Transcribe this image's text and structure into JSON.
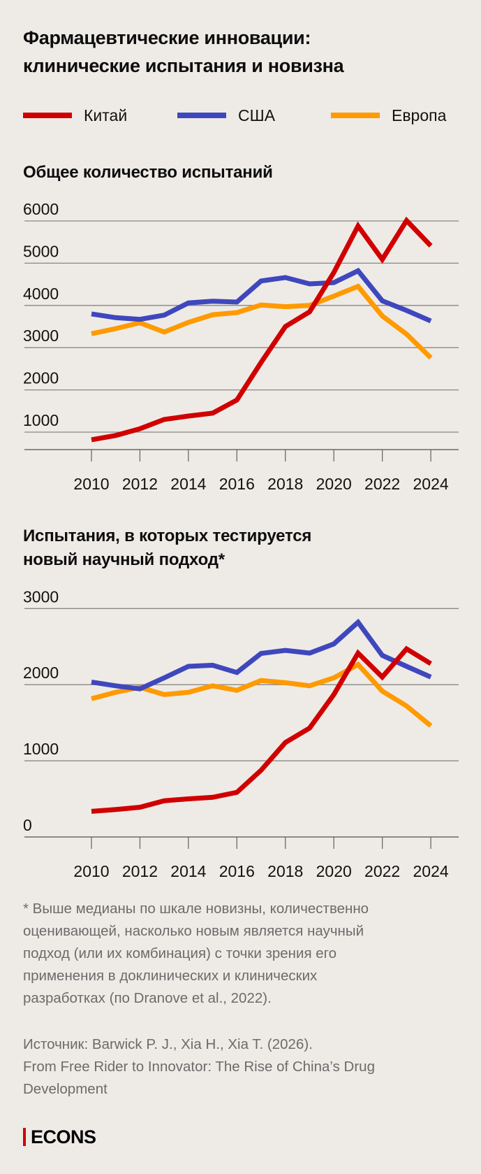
{
  "title": "Фармацевтические инновации: клинические испытания и новизна",
  "title_lines": [
    "Фармацевтические инновации:",
    "клинические испытания и новизна"
  ],
  "legend": [
    {
      "label": "Китай",
      "color": "#d10000"
    },
    {
      "label": "США",
      "color": "#3f47be"
    },
    {
      "label": "Европа",
      "color": "#ff9a00"
    }
  ],
  "footnote_lines": [
    "* Выше медианы по шкале новизны, количественно",
    "оценивающей, насколько новым является научный",
    "подход (или их комбинация) с точки зрения его",
    "применения в доклинических и клинических",
    "разработках (по Dranove et al., 2022)."
  ],
  "source_lines": [
    "Источник: Barwick P. J., Xia H., Xia T. (2026).",
    "From Free Rider to Innovator: The Rise of China’s Drug",
    "Development"
  ],
  "logo": "ECONS",
  "chart_data": [
    {
      "type": "line",
      "title": "Общее количество испытаний",
      "title_lines": [
        "Общее количество испытаний"
      ],
      "xlabel": "",
      "ylabel": "",
      "x": [
        2010,
        2011,
        2012,
        2013,
        2014,
        2015,
        2016,
        2017,
        2018,
        2019,
        2020,
        2021,
        2022,
        2023,
        2024
      ],
      "x_ticks": [
        "2010",
        "2012",
        "2014",
        "2016",
        "2018",
        "2020",
        "2022",
        "2024"
      ],
      "y_ticks": [
        "1000",
        "2000",
        "3000",
        "4000",
        "5000",
        "6000"
      ],
      "ylim": [
        580,
        6000
      ],
      "grid": true,
      "series": [
        {
          "name": "Китай",
          "color": "#d10000",
          "values": [
            820,
            920,
            1080,
            1300,
            1380,
            1450,
            1760,
            2650,
            3500,
            3850,
            4780,
            5880,
            5090,
            6010,
            5410
          ]
        },
        {
          "name": "США",
          "color": "#3f47be",
          "values": [
            3800,
            3710,
            3670,
            3770,
            4060,
            4100,
            4080,
            4580,
            4660,
            4510,
            4540,
            4820,
            4110,
            3880,
            3630
          ]
        },
        {
          "name": "Европа",
          "color": "#ff9a00",
          "values": [
            3330,
            3450,
            3590,
            3370,
            3600,
            3780,
            3830,
            4010,
            3970,
            4000,
            4220,
            4450,
            3750,
            3320,
            2760
          ]
        }
      ]
    },
    {
      "type": "line",
      "title": "Испытания, в которых тестируется новый научный подход*",
      "title_lines": [
        "Испытания, в которых тестируется",
        "новый научный подход*"
      ],
      "xlabel": "",
      "ylabel": "",
      "x": [
        2010,
        2011,
        2012,
        2013,
        2014,
        2015,
        2016,
        2017,
        2018,
        2019,
        2020,
        2021,
        2022,
        2023,
        2024
      ],
      "x_ticks": [
        "2010",
        "2012",
        "2014",
        "2016",
        "2018",
        "2020",
        "2022",
        "2024"
      ],
      "y_ticks": [
        "0",
        "1000",
        "2000",
        "3000"
      ],
      "ylim": [
        0,
        3000
      ],
      "grid": true,
      "series": [
        {
          "name": "Китай",
          "color": "#d10000",
          "values": [
            335,
            360,
            390,
            475,
            500,
            520,
            585,
            875,
            1240,
            1430,
            1870,
            2415,
            2100,
            2470,
            2275
          ]
        },
        {
          "name": "США",
          "color": "#3f47be",
          "values": [
            2035,
            1985,
            1945,
            2090,
            2240,
            2255,
            2160,
            2410,
            2450,
            2415,
            2535,
            2820,
            2385,
            2240,
            2100
          ]
        },
        {
          "name": "Европа",
          "color": "#ff9a00",
          "values": [
            1815,
            1900,
            1965,
            1870,
            1900,
            1985,
            1925,
            2055,
            2025,
            1985,
            2090,
            2265,
            1915,
            1720,
            1460
          ]
        }
      ]
    }
  ]
}
